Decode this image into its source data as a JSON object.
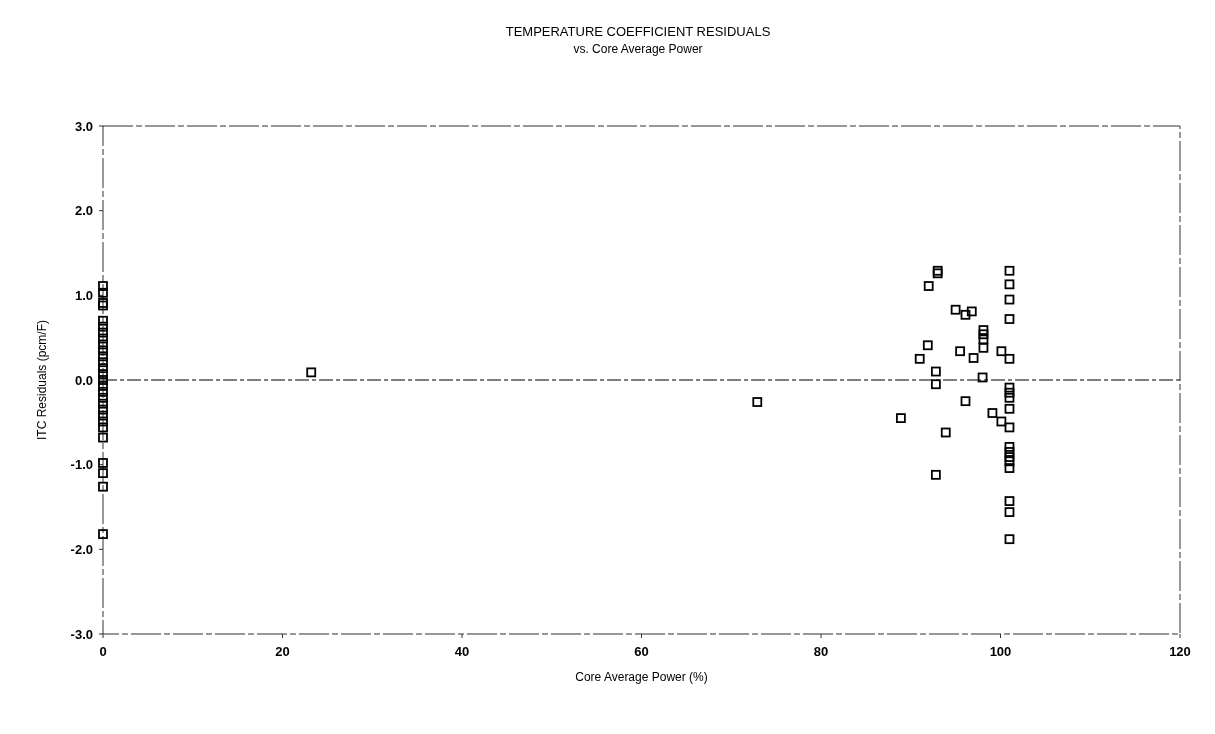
{
  "chart_data": {
    "type": "scatter",
    "title": "TEMPERATURE COEFFICIENT RESIDUALS",
    "subtitle": "vs. Core Average Power",
    "xlabel": "Core Average Power (%)",
    "ylabel": "ITC Residuals (pcm/F)",
    "marker": "square",
    "xlim": [
      0,
      120
    ],
    "xticks": [
      0,
      20,
      40,
      60,
      80,
      100,
      120
    ],
    "ylim": [
      -3,
      3
    ],
    "yticks": [
      {
        "value": -3,
        "label": "-3.0"
      },
      {
        "value": -2,
        "label": "-2.0"
      },
      {
        "value": -1,
        "label": "-1.0"
      },
      {
        "value": 0,
        "label": "0.0"
      },
      {
        "value": 1,
        "label": "1.0"
      },
      {
        "value": 2,
        "label": "2.0"
      },
      {
        "value": 3,
        "label": "3.0"
      }
    ],
    "ref_lines": [
      {
        "axis": "y",
        "value": 0,
        "color": "#000000",
        "line_style": "dashed"
      }
    ],
    "series": [
      {
        "color": "#000000",
        "x": [
          0,
          0,
          0,
          0,
          0,
          0,
          0,
          0,
          0,
          0,
          0,
          0,
          0,
          0,
          0,
          0,
          0,
          0,
          0,
          0,
          0,
          0,
          0,
          0,
          0,
          0,
          0,
          0
        ],
        "values": [
          1.11,
          1.03,
          0.91,
          0.88,
          0.7,
          0.63,
          0.56,
          0.49,
          0.42,
          0.35,
          0.28,
          0.21,
          0.14,
          0.07,
          0,
          -0.07,
          -0.14,
          -0.21,
          -0.28,
          -0.35,
          -0.42,
          -0.49,
          -0.56,
          -0.68,
          -0.98,
          -1.1,
          -1.26,
          -1.82
        ]
      },
      {
        "color": "#000000",
        "x": [
          23.2,
          72.9,
          93,
          93,
          92,
          95,
          96.1,
          96.8,
          98.1,
          98.1,
          98.1,
          98.1,
          91.9,
          91,
          95.5,
          97,
          100.1,
          92.8,
          98,
          92.8,
          96.1,
          88.9,
          99.1,
          100.1,
          93.9,
          92.8
        ],
        "values": [
          0.09,
          -0.26,
          1.29,
          1.26,
          1.11,
          0.83,
          0.77,
          0.81,
          0.59,
          0.54,
          0.48,
          0.38,
          0.41,
          0.25,
          0.34,
          0.26,
          0.34,
          0.1,
          0.03,
          -0.05,
          -0.25,
          -0.45,
          -0.39,
          -0.49,
          -0.62,
          -1.12
        ]
      },
      {
        "color": "#000000",
        "x": [
          101,
          101,
          101,
          101,
          101,
          101,
          101,
          101,
          101,
          101,
          101,
          101,
          101,
          101,
          101,
          101,
          101,
          101
        ],
        "values": [
          1.29,
          1.13,
          0.95,
          0.72,
          0.25,
          -0.09,
          -0.15,
          -0.21,
          -0.34,
          -0.56,
          -0.79,
          -0.85,
          -0.91,
          -0.96,
          -1.04,
          -1.43,
          -1.56,
          -1.88
        ]
      }
    ]
  }
}
